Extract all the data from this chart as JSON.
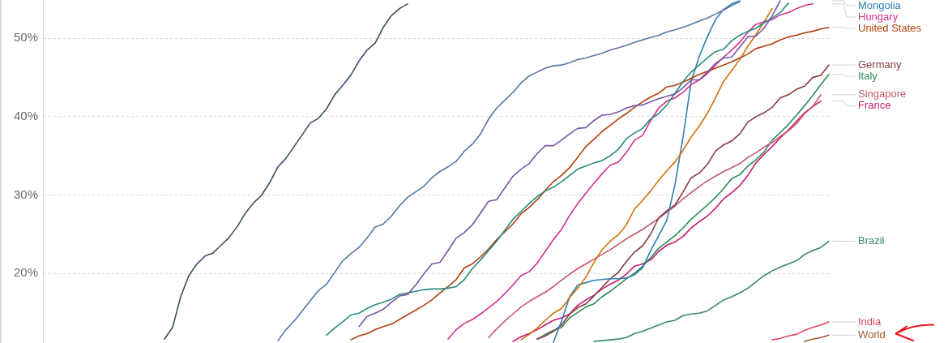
{
  "chart_data": {
    "type": "line",
    "categories": [
      null,
      null,
      null,
      null,
      null,
      null,
      null,
      null,
      null,
      null,
      null,
      null,
      null,
      null,
      null,
      null,
      null,
      null,
      null,
      null,
      null,
      null,
      null,
      null,
      null,
      null,
      null,
      null,
      null,
      null,
      null,
      null,
      null,
      null,
      null,
      null,
      null,
      null,
      null,
      null,
      null,
      null,
      null,
      null,
      null,
      null,
      null,
      null,
      null,
      null,
      null,
      null,
      null,
      null,
      null,
      null,
      null,
      null,
      null,
      null,
      null,
      null,
      null,
      null,
      null,
      null,
      null,
      null,
      null,
      null,
      null,
      null,
      null,
      null,
      null,
      null,
      null,
      null,
      null,
      null,
      null,
      null,
      null,
      null,
      null,
      null,
      null,
      null,
      null,
      null,
      null,
      null,
      null,
      null,
      null,
      null,
      null,
      null
    ],
    "ylim": [
      11.1,
      54.9
    ],
    "yticks": [
      {
        "value": 20,
        "label": "20%"
      },
      {
        "value": 30,
        "label": "30%"
      },
      {
        "value": 40,
        "label": "40%"
      },
      {
        "value": 50,
        "label": "50%"
      }
    ],
    "grid": "y",
    "tick_labels": "y",
    "series": [
      {
        "color": "#3c4e66",
        "values": [
          null,
          null,
          null,
          null,
          null,
          null,
          null,
          null,
          null,
          null,
          null,
          null,
          null,
          null,
          null,
          11.6,
          13.1,
          17.0,
          19.7,
          21.2,
          22.2,
          22.6,
          23.6,
          24.6,
          26.0,
          27.7,
          29.0,
          30.0,
          31.6,
          33.6,
          34.7,
          36.2,
          37.7,
          39.2,
          39.8,
          41.0,
          42.8,
          44.0,
          45.3,
          47.1,
          48.5,
          49.4,
          51.4,
          52.9,
          53.8,
          54.4,
          null,
          null,
          null,
          null,
          null,
          null,
          null,
          null,
          null,
          null,
          null,
          null,
          null,
          null,
          null,
          null,
          null,
          null,
          null,
          null,
          null,
          null,
          null,
          null,
          null,
          null,
          null,
          null,
          null,
          null,
          null,
          null,
          null,
          null,
          null,
          null,
          null,
          null,
          null,
          null,
          null,
          null,
          null,
          null,
          null,
          null,
          null,
          null,
          null,
          null,
          null,
          null
        ]
      },
      {
        "color": "#5876a8",
        "values": [
          null,
          null,
          null,
          null,
          null,
          null,
          null,
          null,
          null,
          null,
          null,
          null,
          null,
          null,
          null,
          null,
          null,
          null,
          null,
          null,
          null,
          null,
          null,
          null,
          null,
          null,
          null,
          null,
          null,
          11.4,
          12.8,
          13.9,
          15.2,
          16.5,
          17.8,
          18.6,
          20.1,
          21.6,
          22.5,
          23.3,
          24.5,
          25.9,
          26.3,
          27.3,
          28.6,
          29.7,
          30.4,
          31.1,
          32.2,
          33.0,
          33.6,
          34.3,
          35.6,
          36.5,
          37.8,
          39.7,
          41.1,
          42.1,
          43.1,
          44.3,
          45.2,
          45.7,
          46.2,
          46.5,
          46.6,
          46.9,
          47.3,
          47.5,
          47.8,
          48.1,
          48.5,
          48.8,
          49.1,
          49.5,
          49.8,
          50.1,
          50.4,
          50.8,
          51.1,
          51.4,
          51.8,
          52.2,
          52.6,
          53.1,
          53.6,
          54.2,
          54.7,
          null,
          null,
          null,
          null,
          null,
          null,
          null,
          null,
          null,
          null,
          null
        ]
      },
      {
        "color": "#7b55a6",
        "values": [
          null,
          null,
          null,
          null,
          null,
          null,
          null,
          null,
          null,
          null,
          null,
          null,
          null,
          null,
          null,
          null,
          null,
          null,
          null,
          null,
          null,
          null,
          null,
          null,
          null,
          null,
          null,
          null,
          null,
          null,
          null,
          null,
          null,
          null,
          null,
          null,
          null,
          null,
          null,
          13.2,
          14.5,
          14.9,
          15.4,
          16.3,
          17.1,
          17.3,
          18.5,
          19.9,
          21.2,
          21.4,
          22.9,
          24.5,
          25.2,
          26.2,
          27.7,
          29.2,
          29.4,
          30.9,
          32.4,
          33.3,
          34.0,
          35.3,
          36.3,
          36.3,
          37.0,
          37.8,
          38.5,
          38.6,
          39.5,
          40.2,
          40.3,
          40.6,
          41.1,
          41.4,
          41.5,
          41.9,
          42.3,
          42.6,
          42.9,
          43.7,
          44.7,
          44.7,
          45.7,
          46.8,
          47.5,
          47.6,
          48.9,
          50.2,
          50.3,
          51.3,
          52.9,
          54.8,
          null,
          null,
          null,
          null,
          null,
          null
        ]
      },
      {
        "color": "#2a8c82",
        "values": [
          null,
          null,
          null,
          null,
          null,
          null,
          null,
          null,
          null,
          null,
          null,
          null,
          null,
          null,
          null,
          null,
          null,
          null,
          null,
          null,
          null,
          null,
          null,
          null,
          null,
          null,
          null,
          null,
          null,
          null,
          null,
          null,
          null,
          null,
          null,
          12.1,
          13.0,
          13.8,
          14.7,
          14.9,
          15.5,
          16.0,
          16.3,
          16.7,
          17.3,
          17.5,
          17.7,
          17.9,
          18.0,
          18.0,
          18.1,
          18.3,
          19.2,
          20.6,
          21.7,
          22.9,
          24.1,
          25.5,
          26.9,
          27.9,
          28.9,
          29.8,
          30.5,
          31.0,
          31.7,
          32.5,
          33.3,
          33.7,
          34.1,
          34.4,
          35.0,
          35.8,
          37.2,
          37.9,
          38.5,
          39.7,
          40.4,
          41.5,
          43.0,
          44.5,
          45.7,
          46.6,
          47.5,
          48.3,
          48.6,
          49.7,
          50.4,
          50.9,
          51.3,
          52.0,
          52.6,
          53.3,
          54.5,
          null,
          null,
          null,
          null,
          null
        ]
      },
      {
        "name": "United States",
        "color": "#b13f0c",
        "values": [
          null,
          null,
          null,
          null,
          null,
          null,
          null,
          null,
          null,
          null,
          null,
          null,
          null,
          null,
          null,
          null,
          null,
          null,
          null,
          null,
          null,
          null,
          null,
          null,
          null,
          null,
          null,
          null,
          null,
          null,
          null,
          null,
          null,
          null,
          null,
          null,
          null,
          null,
          11.5,
          12.0,
          12.3,
          12.8,
          13.2,
          13.5,
          14.1,
          14.7,
          15.3,
          15.9,
          16.6,
          17.5,
          18.3,
          19.2,
          20.7,
          21.2,
          22.1,
          23.1,
          24.3,
          25.3,
          26.3,
          27.6,
          28.4,
          29.4,
          30.6,
          31.7,
          32.5,
          33.5,
          34.8,
          36.2,
          37.1,
          38.1,
          38.9,
          39.7,
          40.4,
          41.2,
          41.9,
          42.5,
          43.0,
          43.8,
          44.0,
          44.4,
          44.9,
          45.4,
          45.8,
          46.2,
          46.6,
          47.0,
          47.5,
          48.0,
          48.7,
          49.0,
          49.3,
          49.8,
          50.2,
          50.4,
          50.7,
          50.9,
          51.2,
          51.4
        ]
      },
      {
        "name": "Hungary",
        "color": "#d4308e",
        "values": [
          null,
          null,
          null,
          null,
          null,
          null,
          null,
          null,
          null,
          null,
          null,
          null,
          null,
          null,
          null,
          null,
          null,
          null,
          null,
          null,
          null,
          null,
          null,
          null,
          null,
          null,
          null,
          null,
          null,
          null,
          null,
          null,
          null,
          null,
          null,
          null,
          null,
          null,
          null,
          null,
          null,
          null,
          null,
          null,
          null,
          null,
          null,
          null,
          null,
          null,
          11.6,
          12.8,
          13.6,
          14.1,
          14.8,
          15.6,
          16.4,
          17.4,
          18.5,
          19.7,
          20.2,
          21.3,
          22.8,
          24.3,
          25.6,
          27.4,
          28.9,
          30.2,
          31.5,
          32.7,
          33.8,
          34.2,
          35.4,
          37.0,
          37.6,
          39.5,
          41.1,
          42.0,
          42.4,
          43.1,
          44.1,
          44.7,
          45.5,
          46.6,
          47.6,
          48.5,
          49.5,
          50.8,
          51.8,
          52.1,
          52.4,
          53.0,
          53.3,
          53.8,
          54.2,
          54.4,
          null,
          null
        ]
      },
      {
        "color": "#d2710f",
        "values": [
          null,
          null,
          null,
          null,
          null,
          null,
          null,
          null,
          null,
          null,
          null,
          null,
          null,
          null,
          null,
          null,
          null,
          null,
          null,
          null,
          null,
          null,
          null,
          null,
          null,
          null,
          null,
          null,
          null,
          null,
          null,
          null,
          null,
          null,
          null,
          null,
          null,
          null,
          null,
          null,
          null,
          null,
          null,
          null,
          null,
          null,
          null,
          null,
          null,
          null,
          null,
          null,
          null,
          null,
          null,
          null,
          null,
          null,
          null,
          11.5,
          12.2,
          13.0,
          14.0,
          14.9,
          15.5,
          16.9,
          18.1,
          19.5,
          21.4,
          23.0,
          24.1,
          24.9,
          26.2,
          28.2,
          29.3,
          30.5,
          31.9,
          33.1,
          34.2,
          35.7,
          37.4,
          38.8,
          40.4,
          42.4,
          44.5,
          45.9,
          47.3,
          49.0,
          50.5,
          52.1,
          53.8,
          null,
          null,
          null,
          null,
          null,
          null,
          null
        ]
      },
      {
        "name": "Mongolia",
        "color": "#2d7fb3",
        "values": [
          null,
          null,
          null,
          null,
          null,
          null,
          null,
          null,
          null,
          null,
          null,
          null,
          null,
          null,
          null,
          null,
          null,
          null,
          null,
          null,
          null,
          null,
          null,
          null,
          null,
          null,
          null,
          null,
          null,
          null,
          null,
          null,
          null,
          null,
          null,
          null,
          null,
          null,
          null,
          null,
          null,
          null,
          null,
          null,
          null,
          null,
          null,
          null,
          null,
          null,
          null,
          null,
          null,
          null,
          null,
          null,
          null,
          null,
          null,
          null,
          null,
          null,
          null,
          11.2,
          13.9,
          17.0,
          18.5,
          18.8,
          19.1,
          19.2,
          19.3,
          19.3,
          19.4,
          19.8,
          20.7,
          22.9,
          24.8,
          26.8,
          31.3,
          37.4,
          44.5,
          47.7,
          50.2,
          52.4,
          53.7,
          54.4,
          54.8,
          null,
          null,
          null,
          null,
          null,
          null,
          null,
          null,
          null,
          null,
          null
        ]
      },
      {
        "name": "Germany",
        "color": "#883a42",
        "values": [
          null,
          null,
          null,
          null,
          null,
          null,
          null,
          null,
          null,
          null,
          null,
          null,
          null,
          null,
          null,
          null,
          null,
          null,
          null,
          null,
          null,
          null,
          null,
          null,
          null,
          null,
          null,
          null,
          null,
          null,
          null,
          null,
          null,
          null,
          null,
          null,
          null,
          null,
          null,
          null,
          null,
          null,
          null,
          null,
          null,
          null,
          null,
          null,
          null,
          null,
          null,
          null,
          null,
          null,
          null,
          null,
          null,
          null,
          null,
          null,
          null,
          11.6,
          12.0,
          12.6,
          13.4,
          14.8,
          15.6,
          16.1,
          17.1,
          18.2,
          19.3,
          20.1,
          21.5,
          22.7,
          23.5,
          25.0,
          27.1,
          28.0,
          28.7,
          30.4,
          32.2,
          32.8,
          33.9,
          35.6,
          36.4,
          36.9,
          37.8,
          39.3,
          40.0,
          40.5,
          41.2,
          42.4,
          42.8,
          43.5,
          43.9,
          45.0,
          45.3,
          46.6
        ]
      },
      {
        "name": "Singapore",
        "color": "#c4576b",
        "values": [
          null,
          null,
          null,
          null,
          null,
          null,
          null,
          null,
          null,
          null,
          null,
          null,
          null,
          null,
          null,
          null,
          null,
          null,
          null,
          null,
          null,
          null,
          null,
          null,
          null,
          null,
          null,
          null,
          null,
          null,
          null,
          null,
          null,
          null,
          null,
          null,
          null,
          null,
          null,
          null,
          null,
          null,
          null,
          null,
          null,
          null,
          null,
          null,
          null,
          null,
          null,
          null,
          null,
          null,
          null,
          11.8,
          12.9,
          13.9,
          14.8,
          15.7,
          16.4,
          17.0,
          17.6,
          18.3,
          19.1,
          19.9,
          20.6,
          21.2,
          21.8,
          22.4,
          23.0,
          23.7,
          24.4,
          25.0,
          25.6,
          26.3,
          27.0,
          27.8,
          28.6,
          29.5,
          30.3,
          31.1,
          31.8,
          32.4,
          33.0,
          33.5,
          34.0,
          34.8,
          35.4,
          36.1,
          36.7,
          37.5,
          38.2,
          39.1,
          40.4,
          41.3,
          42.8,
          null
        ]
      },
      {
        "name": "Italy",
        "color": "#2c8b55",
        "values": [
          null,
          null,
          null,
          null,
          null,
          null,
          null,
          null,
          null,
          null,
          null,
          null,
          null,
          null,
          null,
          null,
          null,
          null,
          null,
          null,
          null,
          null,
          null,
          null,
          null,
          null,
          null,
          null,
          null,
          null,
          null,
          null,
          null,
          null,
          null,
          null,
          null,
          null,
          null,
          null,
          null,
          null,
          null,
          null,
          null,
          null,
          null,
          null,
          null,
          null,
          null,
          null,
          null,
          null,
          null,
          null,
          null,
          null,
          null,
          null,
          null,
          11.6,
          12.2,
          12.7,
          13.1,
          14.3,
          15.0,
          15.7,
          16.1,
          17.0,
          17.7,
          18.5,
          19.3,
          20.0,
          20.9,
          22.0,
          23.2,
          24.0,
          24.8,
          25.8,
          26.9,
          27.8,
          28.7,
          29.7,
          30.8,
          32.1,
          32.6,
          33.7,
          34.5,
          35.5,
          37.0,
          38.0,
          39.0,
          40.2,
          41.4,
          42.7,
          44.1,
          45.4
        ]
      },
      {
        "name": "France",
        "color": "#c8186c",
        "values": [
          null,
          null,
          null,
          null,
          null,
          null,
          null,
          null,
          null,
          null,
          null,
          null,
          null,
          null,
          null,
          null,
          null,
          null,
          null,
          null,
          null,
          null,
          null,
          null,
          null,
          null,
          null,
          null,
          null,
          null,
          null,
          null,
          null,
          null,
          null,
          null,
          null,
          null,
          null,
          null,
          null,
          null,
          null,
          null,
          null,
          null,
          null,
          null,
          null,
          null,
          null,
          null,
          null,
          null,
          null,
          null,
          null,
          null,
          11.3,
          11.9,
          12.3,
          12.8,
          13.4,
          14.0,
          14.3,
          14.8,
          15.9,
          16.6,
          17.2,
          18.0,
          18.6,
          19.1,
          19.9,
          20.9,
          21.2,
          21.7,
          22.8,
          23.6,
          24.0,
          24.7,
          25.8,
          26.6,
          27.3,
          28.3,
          29.5,
          30.3,
          31.2,
          32.5,
          34.1,
          35.2,
          36.2,
          37.3,
          38.3,
          39.4,
          40.5,
          41.3,
          42.0,
          null
        ]
      },
      {
        "name": "Brazil",
        "color": "#3b8472",
        "values": [
          null,
          null,
          null,
          null,
          null,
          null,
          null,
          null,
          null,
          null,
          null,
          null,
          null,
          null,
          null,
          null,
          null,
          null,
          null,
          null,
          null,
          null,
          null,
          null,
          null,
          null,
          null,
          null,
          null,
          null,
          null,
          null,
          null,
          null,
          null,
          null,
          null,
          null,
          null,
          null,
          null,
          null,
          null,
          null,
          null,
          null,
          null,
          null,
          null,
          null,
          null,
          null,
          null,
          null,
          null,
          null,
          null,
          null,
          null,
          null,
          null,
          null,
          null,
          null,
          null,
          null,
          null,
          null,
          11.3,
          11.4,
          11.5,
          11.6,
          11.8,
          12.3,
          12.6,
          13.0,
          13.4,
          13.8,
          14.0,
          14.6,
          14.8,
          14.9,
          15.2,
          15.9,
          16.6,
          17.0,
          17.5,
          18.1,
          18.9,
          19.7,
          20.3,
          20.8,
          21.2,
          21.6,
          22.4,
          22.9,
          23.3,
          24.1
        ]
      },
      {
        "name": "India",
        "color": "#d84a5c",
        "values": [
          null,
          null,
          null,
          null,
          null,
          null,
          null,
          null,
          null,
          null,
          null,
          null,
          null,
          null,
          null,
          null,
          null,
          null,
          null,
          null,
          null,
          null,
          null,
          null,
          null,
          null,
          null,
          null,
          null,
          null,
          null,
          null,
          null,
          null,
          null,
          null,
          null,
          null,
          null,
          null,
          null,
          null,
          null,
          null,
          null,
          null,
          null,
          null,
          null,
          null,
          null,
          null,
          null,
          null,
          null,
          null,
          null,
          null,
          null,
          null,
          null,
          null,
          null,
          null,
          null,
          null,
          null,
          null,
          null,
          null,
          null,
          null,
          null,
          null,
          null,
          null,
          null,
          null,
          null,
          null,
          null,
          null,
          null,
          null,
          null,
          null,
          null,
          null,
          null,
          null,
          11.5,
          11.7,
          12.0,
          12.2,
          12.7,
          13.1,
          13.4,
          13.8
        ]
      },
      {
        "name": "World",
        "color": "#a0582c",
        "values": [
          null,
          null,
          null,
          null,
          null,
          null,
          null,
          null,
          null,
          null,
          null,
          null,
          null,
          null,
          null,
          null,
          null,
          null,
          null,
          null,
          null,
          null,
          null,
          null,
          null,
          null,
          null,
          null,
          null,
          null,
          null,
          null,
          null,
          null,
          null,
          null,
          null,
          null,
          null,
          null,
          null,
          null,
          null,
          null,
          null,
          null,
          null,
          null,
          null,
          null,
          null,
          null,
          null,
          null,
          null,
          null,
          null,
          null,
          null,
          null,
          null,
          null,
          null,
          null,
          null,
          null,
          null,
          null,
          null,
          null,
          null,
          null,
          null,
          null,
          null,
          null,
          null,
          null,
          null,
          null,
          null,
          null,
          null,
          null,
          null,
          null,
          null,
          null,
          null,
          null,
          null,
          null,
          null,
          null,
          11.3,
          11.6,
          11.8,
          12.1
        ]
      }
    ]
  }
}
